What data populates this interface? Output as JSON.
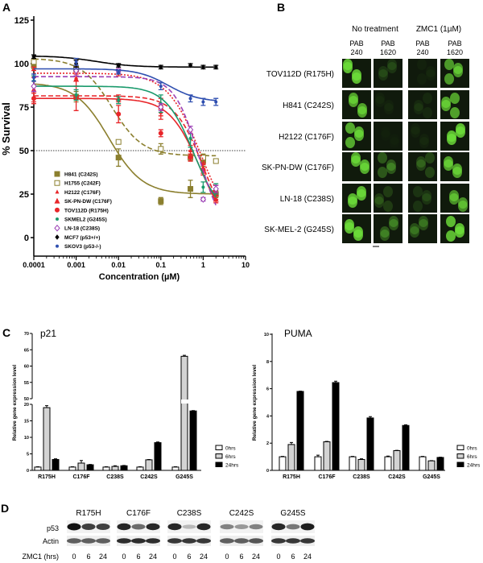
{
  "panel_labels": {
    "a": "A",
    "b": "B",
    "c": "C",
    "d": "D"
  },
  "chart_data": [
    {
      "type": "scatter",
      "panel": "A",
      "xlabel": "Concentration (µM)",
      "ylabel": "% Survival",
      "xscale": "log",
      "xlim": [
        0.0001,
        10
      ],
      "ylim": [
        -10,
        125
      ],
      "xticks": [
        "0.0001",
        "0.001",
        "0.01",
        "0.1",
        "1",
        "10"
      ],
      "yticks": [
        "0",
        "25",
        "50",
        "75",
        "100",
        "125"
      ],
      "reference_line": 50,
      "legend": "bottom-left",
      "series": [
        {
          "name": "H841 (C242S)",
          "color": "#8b7f2e",
          "marker": "square-filled",
          "line": "solid",
          "points": [
            [
              0.0001,
              99,
              2
            ],
            [
              0.001,
              81,
              3
            ],
            [
              0.01,
              46,
              5
            ],
            [
              0.1,
              21,
              2
            ],
            [
              0.5,
              28,
              5
            ],
            [
              1,
              44,
              3
            ],
            [
              2,
              25,
              2
            ]
          ],
          "fit": {
            "top": 89,
            "bottom": 25,
            "ec50": 0.006,
            "hill": 1.1
          }
        },
        {
          "name": "H1755 (C242F)",
          "color": "#8b7f2e",
          "marker": "square-open",
          "line": "dashed",
          "points": [
            [
              0.0001,
              101,
              2
            ],
            [
              0.001,
              97,
              2
            ],
            [
              0.01,
              55,
              1
            ],
            [
              0.1,
              51,
              3
            ],
            [
              0.5,
              46,
              2
            ],
            [
              1,
              46,
              2
            ],
            [
              2,
              44,
              1
            ]
          ],
          "fit": {
            "top": 103,
            "bottom": 47,
            "ec50": 0.007,
            "hill": 1.2
          }
        },
        {
          "name": "H2122 (C176F)",
          "color": "#e8262a",
          "marker": "triangle-small",
          "line": "dotted",
          "points": [
            [
              0.0001,
              97,
              1
            ],
            [
              0.001,
              92,
              2
            ],
            [
              0.01,
              95,
              2
            ],
            [
              0.1,
              72,
              4
            ],
            [
              0.5,
              50,
              3
            ],
            [
              1,
              39,
              3
            ],
            [
              2,
              27,
              3
            ]
          ],
          "fit": {
            "top": 94.5,
            "bottom": 0,
            "ec50": 0.9,
            "hill": 1.1
          }
        },
        {
          "name": "SK-PN-DW (C176F)",
          "color": "#e8262a",
          "marker": "triangle",
          "line": "dashed",
          "points": [
            [
              0.0001,
              85,
              7
            ],
            [
              0.001,
              91,
              4
            ],
            [
              0.01,
              80,
              2
            ],
            [
              0.1,
              75,
              5
            ],
            [
              0.5,
              47,
              3
            ],
            [
              1,
              40,
              3
            ],
            [
              2,
              22,
              2
            ]
          ],
          "fit": {
            "top": 81.5,
            "bottom": 0,
            "ec50": 1.0,
            "hill": 1.3
          }
        },
        {
          "name": "TOV112D (R175H)",
          "color": "#e8262a",
          "marker": "circle",
          "line": "solid",
          "points": [
            [
              0.0001,
              80,
              3
            ],
            [
              0.001,
              80,
              7
            ],
            [
              0.01,
              71,
              5
            ],
            [
              0.1,
              60,
              2
            ],
            [
              0.5,
              46,
              2
            ],
            [
              1,
              39,
              3
            ],
            [
              2,
              25,
              3
            ]
          ],
          "fit": {
            "top": 80,
            "bottom": 0,
            "ec50": 0.85,
            "hill": 1.2
          }
        },
        {
          "name": "SKMEL2 (G245S)",
          "color": "#1a9a6c",
          "marker": "circle-small",
          "line": "solid",
          "points": [
            [
              0.0001,
              90,
              3
            ],
            [
              0.001,
              82,
              3
            ],
            [
              0.01,
              79,
              2
            ],
            [
              0.1,
              77,
              5
            ],
            [
              0.5,
              57,
              5
            ],
            [
              1,
              29,
              3
            ],
            [
              2,
              28,
              3
            ]
          ],
          "fit": {
            "top": 87,
            "bottom": 10,
            "ec50": 0.6,
            "hill": 1.3
          }
        },
        {
          "name": "LN-18 (C238S)",
          "color": "#9b3fb5",
          "marker": "diamond-open",
          "line": "dashed",
          "points": [
            [
              0.0001,
              87,
              3
            ],
            [
              0.001,
              96,
              3
            ],
            [
              0.01,
              96,
              1
            ],
            [
              0.1,
              75,
              2
            ],
            [
              0.5,
              62,
              2
            ],
            [
              1,
              22,
              1
            ],
            [
              2,
              28,
              2
            ]
          ],
          "fit": {
            "top": 92.5,
            "bottom": 0,
            "ec50": 0.8,
            "hill": 1.5
          }
        },
        {
          "name": "MCF7 (p53+/+)",
          "color": "#000000",
          "marker": "diamond-small",
          "line": "solid",
          "points": [
            [
              0.0001,
              104,
              1
            ],
            [
              0.001,
              100,
              2
            ],
            [
              0.01,
              99,
              1
            ],
            [
              0.1,
              98,
              1
            ],
            [
              0.5,
              99,
              1
            ],
            [
              1,
              98,
              1
            ],
            [
              2,
              98,
              1
            ]
          ],
          "fit": {
            "top": 104.5,
            "bottom": 98,
            "ec50": 0.003,
            "hill": 1.0
          }
        },
        {
          "name": "SKOV3 (p53-/-)",
          "color": "#2f4fb0",
          "marker": "circle-small",
          "line": "solid",
          "points": [
            [
              0.0001,
              92,
              2
            ],
            [
              0.001,
              101,
              2
            ],
            [
              0.01,
              95,
              1
            ],
            [
              0.1,
              87,
              2
            ],
            [
              0.5,
              80,
              2
            ],
            [
              1,
              78,
              2
            ],
            [
              2,
              78,
              2
            ]
          ],
          "fit": {
            "top": 97,
            "bottom": 78,
            "ec50": 0.15,
            "hill": 1.2
          }
        }
      ]
    },
    {
      "type": "bar",
      "panel": "C",
      "title": "p21",
      "ylabel": "Relative gene expression level",
      "ylim": [
        0,
        70
      ],
      "axis_break": [
        20,
        50
      ],
      "yticks_lower": [
        "0",
        "5",
        "10",
        "15",
        "20"
      ],
      "yticks_upper": [
        "50",
        "55",
        "60",
        "65",
        "70"
      ],
      "categories": [
        "R175H",
        "C176F",
        "C238S",
        "C242S",
        "G245S"
      ],
      "legend": "right",
      "series": [
        {
          "name": "0hrs",
          "color": "#ffffff",
          "values": [
            1,
            1,
            1,
            1,
            1
          ],
          "errors": [
            0.1,
            0.1,
            0.1,
            0.1,
            0.1
          ]
        },
        {
          "name": "6hrs",
          "color": "#d3d3d3",
          "values": [
            19,
            2.2,
            1.2,
            3.2,
            63
          ],
          "errors": [
            0.6,
            0.8,
            0.2,
            0.1,
            0.3
          ]
        },
        {
          "name": "24hrs",
          "color": "#000000",
          "values": [
            3.3,
            1.7,
            1.4,
            8.4,
            18
          ],
          "errors": [
            0.2,
            0.1,
            0.1,
            0.2,
            0.1
          ]
        }
      ]
    },
    {
      "type": "bar",
      "panel": "C",
      "title": "PUMA",
      "ylabel": "Relative gene expression level",
      "ylim": [
        0,
        10
      ],
      "yticks": [
        "0",
        "2",
        "4",
        "6",
        "8",
        "10"
      ],
      "categories": [
        "R175H",
        "C176F",
        "C238S",
        "C242S",
        "G245S"
      ],
      "legend": "right",
      "series": [
        {
          "name": "0hrs",
          "color": "#ffffff",
          "values": [
            1,
            1,
            1,
            1,
            1
          ],
          "errors": [
            0.03,
            0.12,
            0.03,
            0.05,
            0.03
          ]
        },
        {
          "name": "6hrs",
          "color": "#d3d3d3",
          "values": [
            1.9,
            2.1,
            0.8,
            1.45,
            0.7
          ],
          "errors": [
            0.15,
            0.03,
            0.05,
            0.02,
            0.02
          ]
        },
        {
          "name": "24hrs",
          "color": "#000000",
          "values": [
            5.8,
            6.45,
            3.85,
            3.3,
            0.95
          ],
          "errors": [
            0.02,
            0.1,
            0.1,
            0.05,
            0.02
          ]
        }
      ]
    }
  ],
  "panel_b": {
    "group_headers": [
      "No treatment",
      "ZMC1 (1µM)"
    ],
    "columns": [
      [
        "PAB",
        "240"
      ],
      [
        "PAB",
        "1620"
      ],
      [
        "PAB",
        "240"
      ],
      [
        "PAB",
        "1620"
      ]
    ],
    "rows": [
      {
        "label": "TOV112D (R175H)",
        "intensity": [
          0.95,
          0.15,
          0.05,
          0.75
        ]
      },
      {
        "label": "H841 (C242S)",
        "intensity": [
          0.8,
          0.05,
          0.08,
          0.8
        ]
      },
      {
        "label": "H2122 (C176F)",
        "intensity": [
          0.85,
          0.02,
          0.05,
          0.95
        ]
      },
      {
        "label": "SK-PN-DW (C176F)",
        "intensity": [
          0.85,
          0.35,
          0.25,
          0.8
        ]
      },
      {
        "label": "LN-18 (C238S)",
        "intensity": [
          0.9,
          0.2,
          0.15,
          0.7
        ]
      },
      {
        "label": "SK-MEL-2 (G245S)",
        "intensity": [
          0.95,
          0.35,
          0.3,
          0.95
        ]
      }
    ],
    "fluor_color": "#6ee03a"
  },
  "panel_d": {
    "mutants": [
      "R175H",
      "C176F",
      "C238S",
      "C242S",
      "G245S"
    ],
    "row_labels": [
      "p53",
      "Actin"
    ],
    "time_label": "ZMC1 (hrs)",
    "timepoints": [
      "0",
      "6",
      "24"
    ],
    "p53_band_intensity": [
      [
        1.0,
        0.8,
        0.8
      ],
      [
        0.9,
        0.6,
        0.9
      ],
      [
        0.9,
        0.25,
        0.9
      ],
      [
        0.5,
        0.4,
        0.5
      ],
      [
        0.9,
        0.55,
        0.95
      ]
    ],
    "actin_band_intensity": [
      [
        0.7,
        0.7,
        0.7
      ],
      [
        0.95,
        0.95,
        0.95
      ],
      [
        0.9,
        0.9,
        0.9
      ],
      [
        0.7,
        0.7,
        0.75
      ],
      [
        0.9,
        0.9,
        0.9
      ]
    ]
  }
}
